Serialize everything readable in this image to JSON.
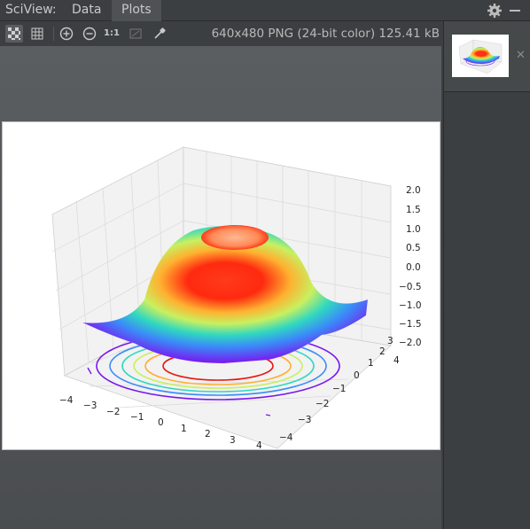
{
  "app": {
    "title": "SciView:"
  },
  "tabs": [
    {
      "label": "Data"
    },
    {
      "label": "Plots"
    }
  ],
  "toolbar": {
    "actual_size_label": "1:1",
    "image_info": "640x480 PNG (24-bit color) 125.41 kB"
  },
  "plot": {
    "z_ticks": [
      "2.0",
      "1.5",
      "1.0",
      "0.5",
      "0.0",
      "−0.5",
      "−1.0",
      "−1.5",
      "−2.0"
    ],
    "x_ticks": [
      "−4",
      "−3",
      "−2",
      "−1",
      "0",
      "1",
      "2",
      "3",
      "4"
    ],
    "y_ticks": [
      "−4",
      "−3",
      "−2",
      "−1",
      "0",
      "1",
      "2",
      "3",
      "4"
    ]
  },
  "colors": {
    "accent_red": "#e8170f",
    "accent_purple": "#7a16f0"
  },
  "icons": [
    "checkerboard-icon",
    "grid-icon",
    "zoom-in-icon",
    "zoom-out-icon",
    "fit-icon",
    "color-picker-icon",
    "gear-icon",
    "minimize-icon",
    "close-icon"
  ]
}
